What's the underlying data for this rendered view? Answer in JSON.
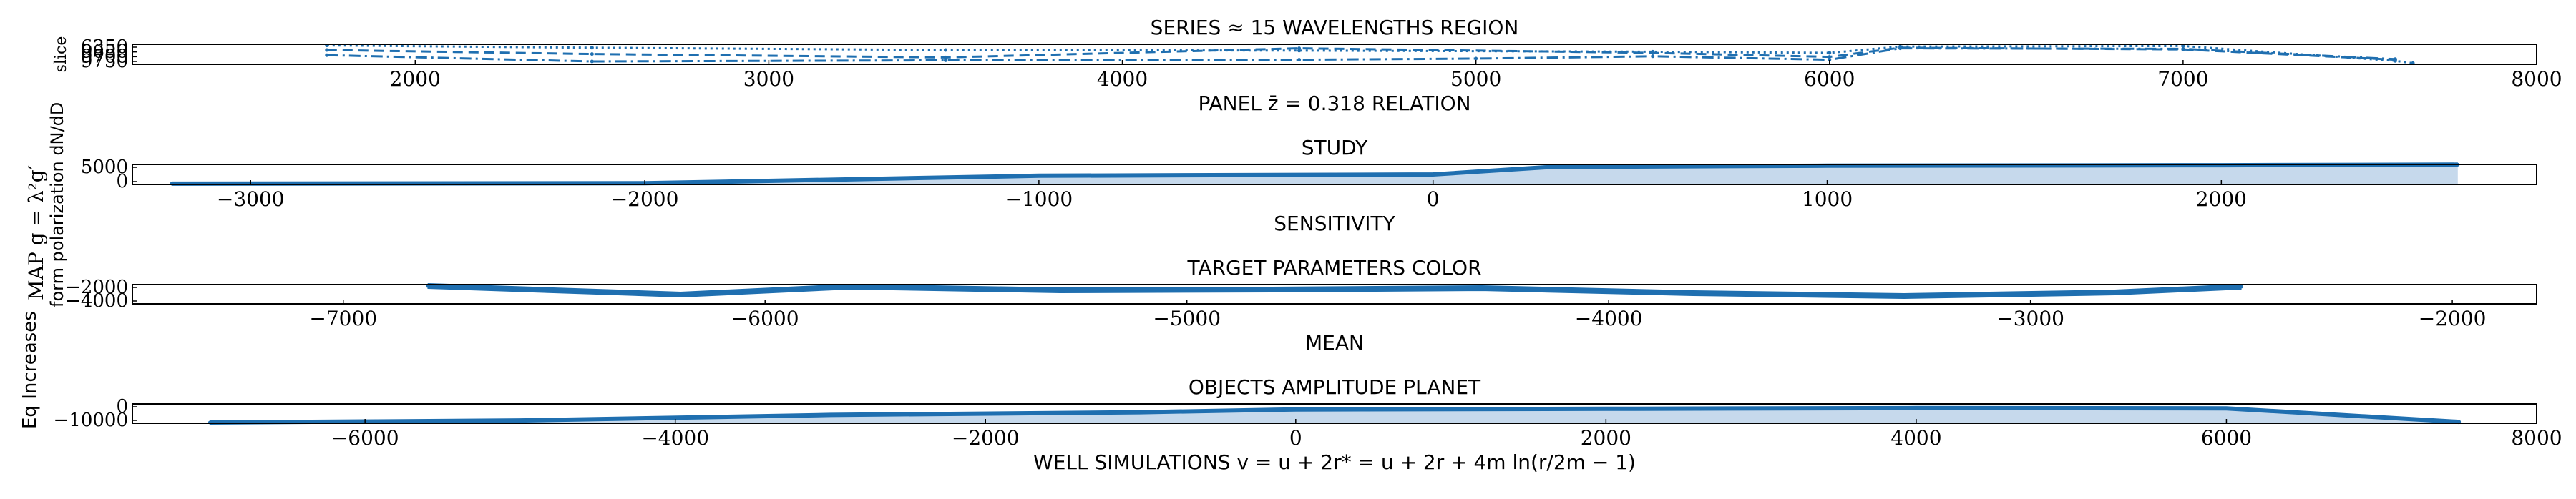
{
  "colors": {
    "primary": "#1f6fb0",
    "light": "#c6d9ec",
    "axis": "#000000"
  },
  "ylabel_left": "Eq Increases",
  "ylabel_mid": "MAP g = λ²g′",
  "ylabel_mid2": "form polarization dN/dD",
  "chart_data": [
    {
      "type": "line",
      "title": "SERIES ≈ 15 WAVELENGTHS REGION",
      "xlabel": "PANEL z̄ = 0.318 RELATION",
      "ylabel": "slice",
      "xlim": [
        1200,
        8000
      ],
      "ylim": [
        9800,
        6300
      ],
      "xticks": [
        "2000",
        "3000",
        "4000",
        "5000",
        "6000",
        "7000",
        "8000"
      ],
      "yticks": [
        "6350",
        "9650",
        "9700",
        "9750"
      ],
      "series": [
        {
          "style": "dotted",
          "x": [
            1750,
            2500,
            3500,
            4500,
            5500,
            6000,
            6200,
            7000,
            7600,
            7650
          ],
          "y": [
            6500,
            6900,
            7300,
            7400,
            7600,
            7800,
            6700,
            6600,
            9200,
            9600
          ]
        },
        {
          "style": "dashed",
          "x": [
            1750,
            2500,
            3500,
            4500,
            5500,
            6000,
            6200,
            7000,
            7600
          ],
          "y": [
            7300,
            8000,
            8600,
            7000,
            7800,
            8500,
            6900,
            7200,
            9000
          ]
        },
        {
          "style": "dashdot",
          "x": [
            1750,
            2500,
            3500,
            4500,
            5000,
            5500,
            6000,
            6200,
            7000,
            7600
          ],
          "y": [
            8200,
            9300,
            9100,
            9000,
            8800,
            8400,
            9000,
            7000,
            7100,
            8900
          ]
        }
      ]
    },
    {
      "type": "area",
      "title": "STUDY",
      "xlabel": "SENSITIVITY",
      "xlim": [
        -3300,
        2800
      ],
      "ylim": [
        -1500,
        6500
      ],
      "xticks": [
        "−3000",
        "−2000",
        "−1000",
        "0",
        "1000",
        "2000"
      ],
      "yticks": [
        "5000",
        "0"
      ],
      "series": [
        {
          "x": [
            -3200,
            -2000,
            -1000,
            0,
            300,
            1000,
            2000,
            2600
          ],
          "y": [
            -1200,
            -1000,
            2000,
            2500,
            5500,
            6000,
            6200,
            6400
          ]
        }
      ]
    },
    {
      "type": "line",
      "title": "TARGET PARAMETERS COLOR",
      "xlabel": "MEAN",
      "xlim": [
        -7500,
        -1800
      ],
      "ylim": [
        -4500,
        -1800
      ],
      "xticks": [
        "−7000",
        "−6000",
        "−5000",
        "−4000",
        "−3000",
        "−2000"
      ],
      "yticks": [
        "−2000",
        "−4000"
      ],
      "series": [
        {
          "x": [
            -6800,
            -6200,
            -5800,
            -5300,
            -4800,
            -4300,
            -3800,
            -3300,
            -2800,
            -2500
          ],
          "y": [
            -2000,
            -3200,
            -2100,
            -2600,
            -2500,
            -2300,
            -3000,
            -3400,
            -2900,
            -2100
          ]
        }
      ]
    },
    {
      "type": "area",
      "title": "OBJECTS AMPLITUDE PLANET",
      "xlabel": "WELL SIMULATIONS v = u + 2r* = u + 2r + 4m ln(r/2m − 1)",
      "xlim": [
        -7500,
        8000
      ],
      "ylim": [
        -12000,
        2000
      ],
      "xticks": [
        "−6000",
        "−4000",
        "−2000",
        "0",
        "2000",
        "4000",
        "6000",
        "8000"
      ],
      "yticks": [
        "0",
        "−10000"
      ],
      "series": [
        {
          "x": [
            -7000,
            -5000,
            -3000,
            -1000,
            0,
            2000,
            4000,
            6000,
            7500
          ],
          "y": [
            -11500,
            -10000,
            -6000,
            -4000,
            -2000,
            -1500,
            -1000,
            -1200,
            -11000
          ]
        }
      ]
    }
  ]
}
